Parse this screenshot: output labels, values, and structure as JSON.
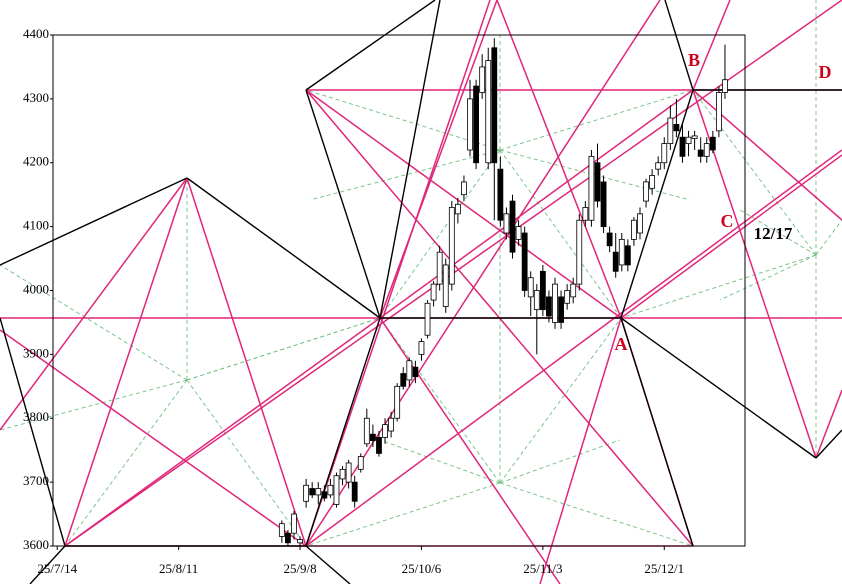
{
  "chart_data": {
    "type": "candlestick",
    "xlim": [
      -0.7,
      113.3
    ],
    "xticks": [
      {
        "value": 0,
        "label": "25/7/14"
      },
      {
        "value": 20,
        "label": "25/8/11"
      },
      {
        "value": 40,
        "label": "25/9/8"
      },
      {
        "value": 60,
        "label": "25/10/6"
      },
      {
        "value": 80,
        "label": "25/11/3"
      },
      {
        "value": 100,
        "label": "25/12/1"
      }
    ],
    "ylim": [
      3600,
      4400
    ],
    "yticks": [
      3600,
      3700,
      3800,
      3900,
      4000,
      4100,
      4200,
      4300,
      4400
    ],
    "up_color": "#ffffff",
    "down_color": "#000000",
    "x": [
      37,
      38,
      39,
      40,
      41,
      42,
      43,
      44,
      45,
      46,
      47,
      48,
      49,
      50,
      51,
      52,
      53,
      54,
      55,
      56,
      57,
      58,
      59,
      60,
      61,
      62,
      63,
      64,
      65,
      66,
      67,
      68,
      69,
      70,
      71,
      72,
      73,
      74,
      75,
      76,
      77,
      78,
      79,
      80,
      81,
      82,
      83,
      84,
      85,
      86,
      87,
      88,
      89,
      90,
      91,
      92,
      93,
      94,
      95,
      96,
      97,
      98,
      99,
      100,
      101,
      102,
      103,
      104,
      105,
      106,
      107,
      108,
      109,
      110
    ],
    "open": [
      3615,
      3620,
      3620,
      3605,
      3670,
      3690,
      3680,
      3685,
      3680,
      3665,
      3705,
      3700,
      3700,
      3720,
      3760,
      3775,
      3770,
      3770,
      3780,
      3800,
      3870,
      3860,
      3880,
      3900,
      3930,
      3985,
      4010,
      3975,
      4010,
      4120,
      4150,
      4220,
      4320,
      4310,
      4200,
      4380,
      4190,
      4090,
      4140,
      4080,
      4090,
      3990,
      3970,
      4030,
      3990,
      3950,
      3990,
      3980,
      3990,
      4010,
      4110,
      4110,
      4200,
      4170,
      4090,
      4060,
      4040,
      4070,
      4080,
      4090,
      4140,
      4160,
      4190,
      4200,
      4230,
      4260,
      4240,
      4230,
      4238,
      4220,
      4210,
      4240,
      4250,
      4310
    ],
    "high": [
      3640,
      3625,
      3655,
      3615,
      3705,
      3700,
      3700,
      3695,
      3705,
      3715,
      3725,
      3735,
      3710,
      3745,
      3815,
      3790,
      3780,
      3800,
      3810,
      3855,
      3880,
      3895,
      3890,
      3925,
      3985,
      4015,
      4070,
      4050,
      4140,
      4145,
      4180,
      4330,
      4330,
      4370,
      4380,
      4395,
      4210,
      4130,
      4150,
      4110,
      4100,
      4030,
      4010,
      4040,
      4000,
      4020,
      4000,
      4010,
      4020,
      4120,
      4140,
      4220,
      4230,
      4180,
      4100,
      4090,
      4090,
      4080,
      4115,
      4130,
      4175,
      4190,
      4210,
      4240,
      4290,
      4300,
      4260,
      4250,
      4250,
      4240,
      4240,
      4250,
      4320,
      4385
    ],
    "low": [
      3605,
      3600,
      3610,
      3600,
      3660,
      3675,
      3665,
      3670,
      3675,
      3660,
      3695,
      3690,
      3660,
      3715,
      3755,
      3755,
      3740,
      3760,
      3770,
      3795,
      3845,
      3850,
      3855,
      3890,
      3925,
      3975,
      4000,
      3965,
      4000,
      4105,
      4140,
      4210,
      4190,
      4300,
      4190,
      4110,
      4100,
      4080,
      4050,
      4070,
      3990,
      3960,
      3900,
      3960,
      3950,
      3940,
      3940,
      3970,
      3980,
      4000,
      4100,
      4100,
      4130,
      4090,
      4060,
      4020,
      4030,
      4030,
      4070,
      4080,
      4130,
      4150,
      4180,
      4190,
      4220,
      4240,
      4200,
      4210,
      4220,
      4200,
      4200,
      4215,
      4240,
      4300
    ],
    "close": [
      3635,
      3605,
      3650,
      3610,
      3695,
      3680,
      3690,
      3675,
      3695,
      3710,
      3720,
      3730,
      3670,
      3740,
      3800,
      3765,
      3745,
      3790,
      3800,
      3850,
      3850,
      3890,
      3865,
      3920,
      3980,
      4010,
      4060,
      4040,
      4130,
      4135,
      4170,
      4300,
      4200,
      4350,
      4360,
      4200,
      4110,
      4120,
      4060,
      4100,
      4000,
      4020,
      4000,
      3970,
      3960,
      4010,
      3950,
      4000,
      4010,
      4110,
      4130,
      4210,
      4140,
      4100,
      4070,
      4030,
      4080,
      4040,
      4110,
      4120,
      4170,
      4180,
      4200,
      4230,
      4270,
      4250,
      4210,
      4240,
      4242,
      4210,
      4230,
      4220,
      4310,
      4330
    ],
    "annotations": [
      "A",
      "B",
      "C",
      "D",
      "12/17"
    ]
  }
}
